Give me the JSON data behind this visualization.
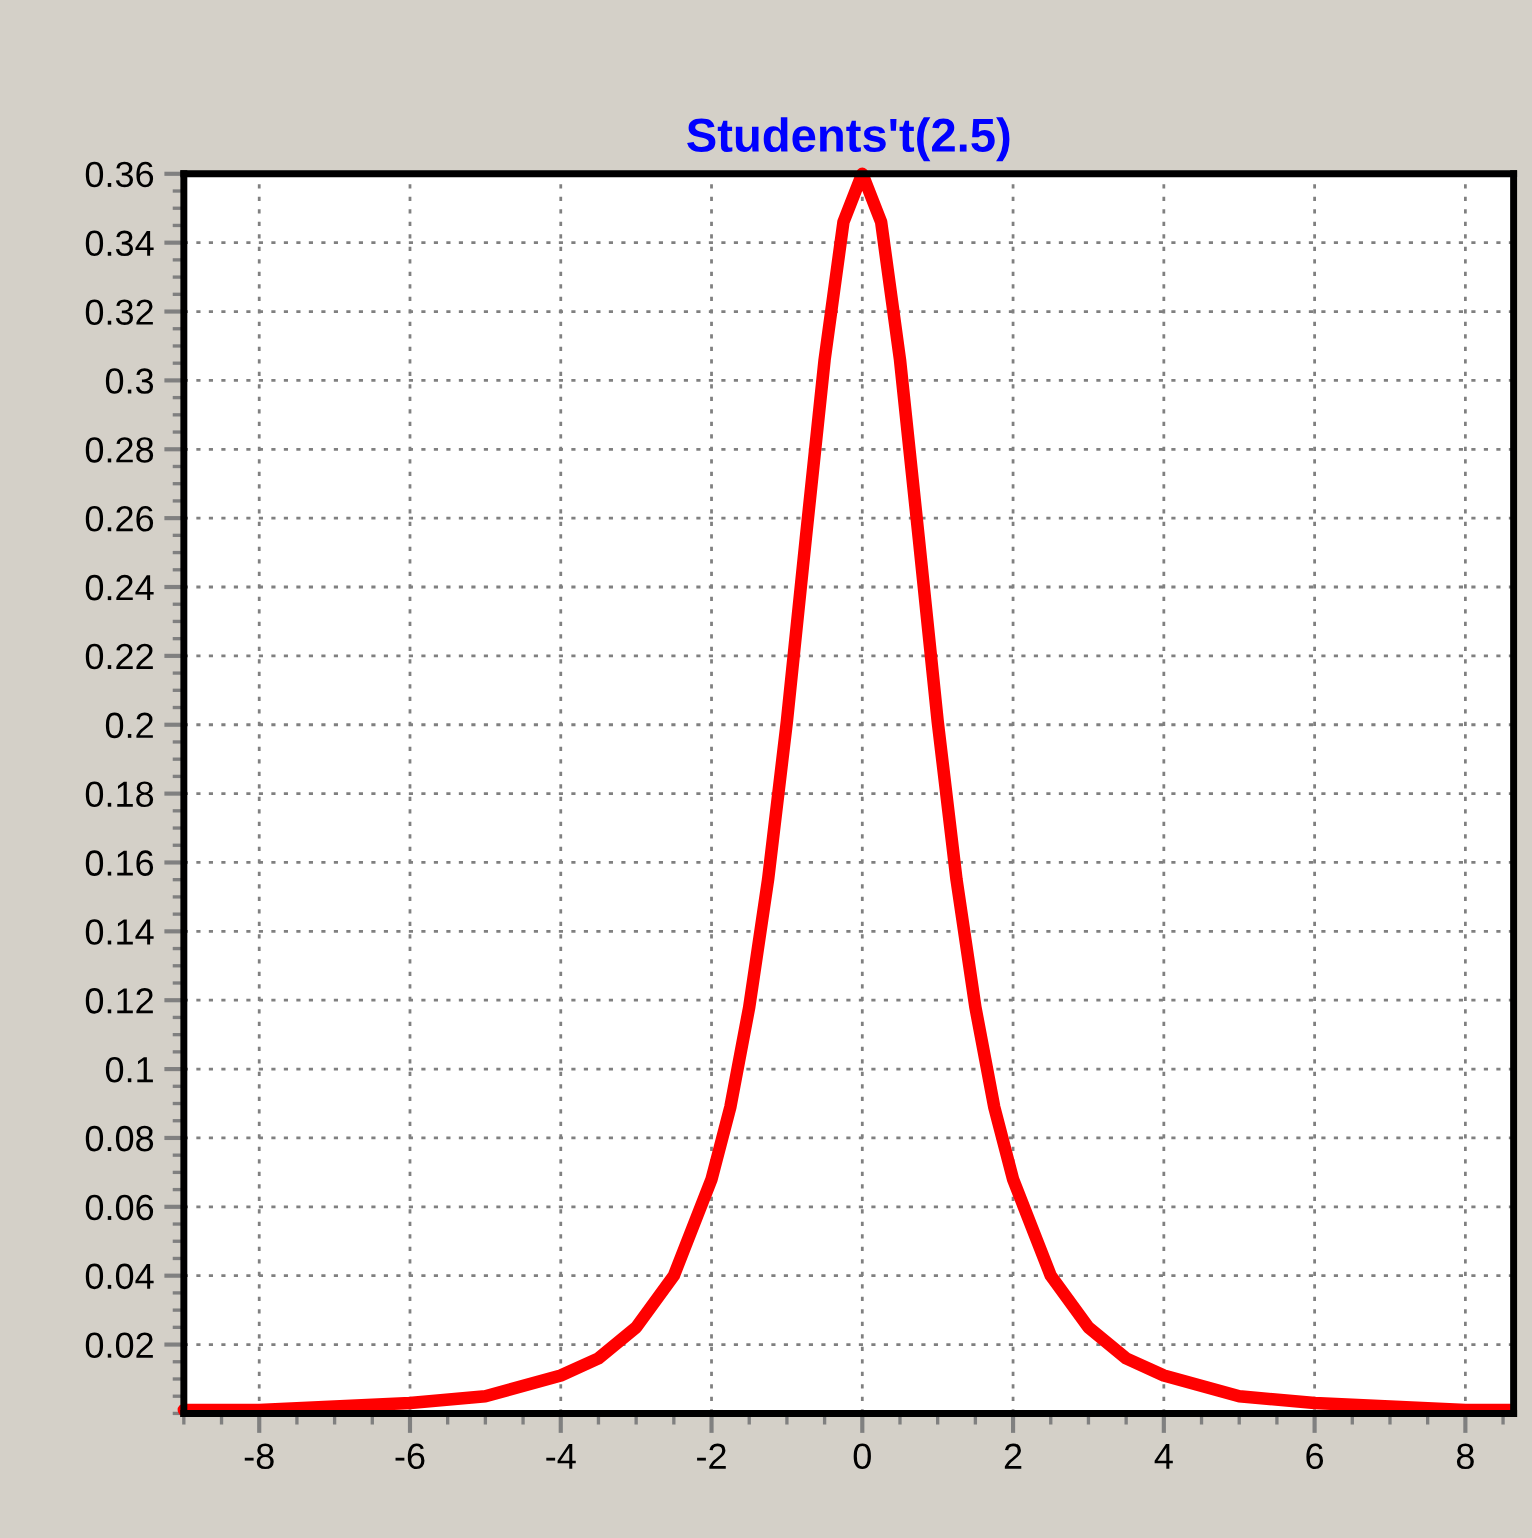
{
  "chart_data": {
    "type": "line",
    "title": "Students't(2.5)",
    "series": [
      {
        "color": "#ff0000",
        "x": [
          -9,
          -8,
          -7,
          -6,
          -5,
          -4,
          -3.5,
          -3,
          -2.5,
          -2,
          -1.75,
          -1.5,
          -1.25,
          -1,
          -0.75,
          -0.5,
          -0.25,
          0,
          0.25,
          0.5,
          0.75,
          1,
          1.25,
          1.5,
          1.75,
          2,
          2.5,
          3,
          3.5,
          4,
          5,
          6,
          7,
          8,
          8.6
        ],
        "values": [
          0.001,
          0.001,
          0.002,
          0.003,
          0.005,
          0.011,
          0.016,
          0.025,
          0.04,
          0.068,
          0.089,
          0.118,
          0.155,
          0.201,
          0.254,
          0.306,
          0.346,
          0.36,
          0.346,
          0.306,
          0.254,
          0.201,
          0.155,
          0.118,
          0.089,
          0.068,
          0.04,
          0.025,
          0.016,
          0.011,
          0.005,
          0.003,
          0.002,
          0.001,
          0.001
        ]
      }
    ],
    "xlim": [
      -9,
      8.64
    ],
    "ylim": [
      0,
      0.36
    ],
    "xticks": [
      -8,
      -6,
      -4,
      -2,
      0,
      2,
      4,
      6,
      8
    ],
    "yticks": [
      0.02,
      0.04,
      0.06,
      0.08,
      0.1,
      0.12,
      0.14,
      0.16,
      0.18,
      0.2,
      0.22,
      0.24,
      0.26,
      0.28,
      0.3,
      0.32,
      0.34,
      0.36
    ],
    "grid": true,
    "marker": "none",
    "line_style": "solid"
  }
}
